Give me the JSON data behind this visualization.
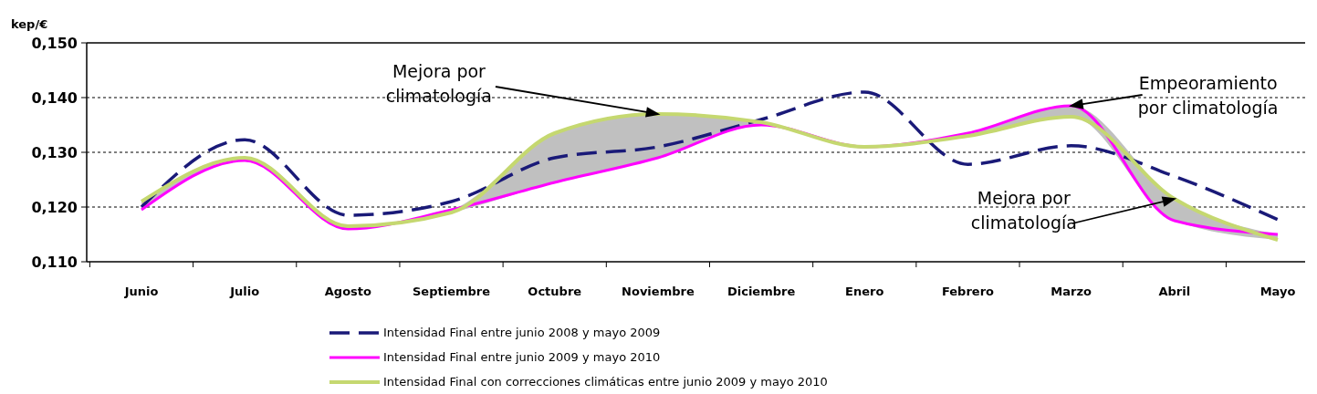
{
  "chart_data": {
    "type": "line",
    "ylabel": "kep/€",
    "categories": [
      "Junio",
      "Julio",
      "Agosto",
      "Septiembre",
      "Octubre",
      "Noviembre",
      "Diciembre",
      "Enero",
      "Febrero",
      "Marzo",
      "Abril",
      "Mayo"
    ],
    "series": [
      {
        "name": "Intensidad Final entre junio 2008 y mayo 2009",
        "color": "#1a1a78",
        "line_style": "dashed",
        "values": [
          0.12,
          0.1323,
          0.1185,
          0.121,
          0.129,
          0.131,
          0.136,
          0.141,
          0.1278,
          0.1312,
          0.1256,
          0.1177
        ]
      },
      {
        "name": "Intensidad Final entre junio 2009 y mayo 2010",
        "color": "#ff00ff",
        "values": [
          0.1195,
          0.1285,
          0.116,
          0.1195,
          0.1245,
          0.129,
          0.135,
          0.131,
          0.1335,
          0.1385,
          0.1175,
          0.115
        ]
      },
      {
        "name": "Intensidad Final con correcciones climáticas entre junio 2009 y mayo 2010",
        "color": "#c5d870",
        "values": [
          0.121,
          0.129,
          0.1165,
          0.119,
          0.1335,
          0.137,
          0.1355,
          0.131,
          0.133,
          0.1365,
          0.1215,
          0.114
        ],
        "lower": [
          0.1195,
          0.1285,
          0.116,
          0.119,
          0.1245,
          0.129,
          0.135,
          0.131,
          0.133,
          0.1365,
          0.1175,
          0.114
        ],
        "upper": [
          0.121,
          0.129,
          0.1165,
          0.1195,
          0.1335,
          0.137,
          0.1355,
          0.131,
          0.1335,
          0.1385,
          0.1215,
          0.115
        ]
      }
    ],
    "ylim": [
      0.11,
      0.15
    ],
    "yticks": [
      {
        "value": 0.11,
        "label": "0,110"
      },
      {
        "value": 0.12,
        "label": "0,120"
      },
      {
        "value": 0.13,
        "label": "0,130"
      },
      {
        "value": 0.14,
        "label": "0,140"
      },
      {
        "value": 0.15,
        "label": "0,150"
      }
    ],
    "grid": "y",
    "legend": "bottom",
    "marker": "none",
    "annotations": [
      {
        "text": "Mejora por climatología",
        "x": "Noviembre",
        "y": 0.137
      },
      {
        "text": "Empeoramiento por climatología",
        "x": "Marzo",
        "y": 0.1385
      },
      {
        "text": "Mejora por climatología",
        "x": "Abril",
        "y": 0.1215
      }
    ]
  }
}
